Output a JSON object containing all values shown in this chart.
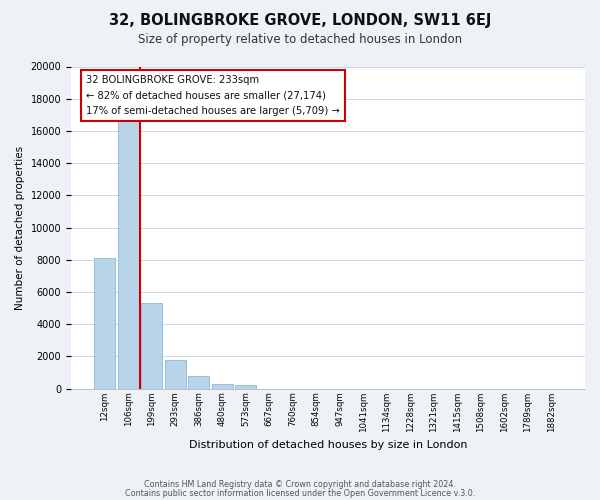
{
  "title": "32, BOLINGBROKE GROVE, LONDON, SW11 6EJ",
  "subtitle": "Size of property relative to detached houses in London",
  "xlabel": "Distribution of detached houses by size in London",
  "ylabel": "Number of detached properties",
  "bar_values": [
    8100,
    16600,
    5300,
    1750,
    750,
    300,
    200,
    0,
    0,
    0,
    0,
    0,
    0,
    0,
    0,
    0,
    0,
    0,
    0,
    0
  ],
  "bar_labels": [
    "12sqm",
    "106sqm",
    "199sqm",
    "293sqm",
    "386sqm",
    "480sqm",
    "573sqm",
    "667sqm",
    "760sqm",
    "854sqm",
    "947sqm",
    "1041sqm",
    "1134sqm",
    "1228sqm",
    "1321sqm",
    "1415sqm",
    "1508sqm",
    "1602sqm",
    "1789sqm",
    "1882sqm"
  ],
  "bar_color": "#b8d4e8",
  "bar_edge_color": "#7bafd4",
  "property_line_color": "#cc0000",
  "ylim": [
    0,
    20000
  ],
  "yticks": [
    0,
    2000,
    4000,
    6000,
    8000,
    10000,
    12000,
    14000,
    16000,
    18000,
    20000
  ],
  "annotation_title": "32 BOLINGBROKE GROVE: 233sqm",
  "annotation_line1": "← 82% of detached houses are smaller (27,174)",
  "annotation_line2": "17% of semi-detached houses are larger (5,709) →",
  "footer_line1": "Contains HM Land Registry data © Crown copyright and database right 2024.",
  "footer_line2": "Contains public sector information licensed under the Open Government Licence v.3.0.",
  "bg_color": "#eef2f7",
  "plot_bg_color": "#ffffff",
  "grid_color": "#c8d8e8"
}
